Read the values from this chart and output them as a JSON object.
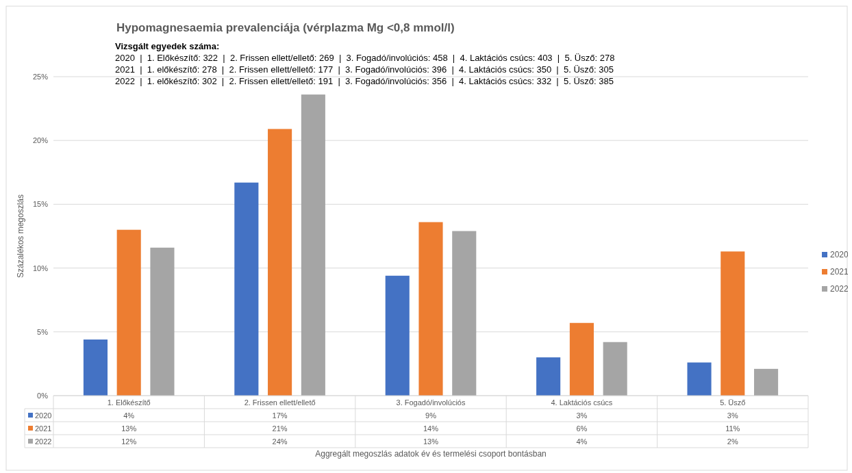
{
  "chart_data": {
    "type": "bar",
    "title": "Hypomagnesaemia prevalenciája (vérplazma Mg <0,8 mmol/l)",
    "annotations": [
      "Vizsgált egyedek száma:",
      "2020  |  1. Előkészítő: 322  |  2. Frissen ellett/ellető: 269  |  3. Fogadó/involúciós: 458  |  4. Laktációs csúcs: 403  |  5. Üsző: 278",
      "2021  |  1. előkészítő: 278  |  2. Frissen ellett/ellető: 177  |  3. Fogadó/involúciós: 396  |  4. Laktációs csúcs: 350  |  5. Üsző: 305",
      "2022  |  1. előkészítő: 302  |  2. Frissen ellett/ellető: 191  |  3. Fogadó/involúciós: 356  |  4. Laktációs csúcs: 332  |  5. Üsző: 385",
      "Aggregált megoszlás adatok év és termelési csoport bontásban"
    ],
    "ylabel": "Százalékos megoszlás",
    "categories": [
      "1. Előkészítő",
      "2. Frissen ellett/ellető",
      "3. Fogadó/involúciós",
      "4. Laktációs csúcs",
      "5. Üsző"
    ],
    "series": [
      {
        "name": "2020",
        "color": "#4472c4",
        "values": [
          4.4,
          16.7,
          9.4,
          3.0,
          2.6
        ],
        "value_labels": [
          "4%",
          "17%",
          "9%",
          "3%",
          "3%"
        ]
      },
      {
        "name": "2021",
        "color": "#ed7d31",
        "values": [
          13.0,
          20.9,
          13.6,
          5.7,
          11.3
        ],
        "value_labels": [
          "13%",
          "21%",
          "14%",
          "6%",
          "11%"
        ]
      },
      {
        "name": "2022",
        "color": "#a5a5a5",
        "values": [
          11.6,
          23.6,
          12.9,
          4.2,
          2.1
        ],
        "value_labels": [
          "12%",
          "24%",
          "13%",
          "4%",
          "2%"
        ]
      }
    ],
    "ylim": [
      0,
      25
    ],
    "yticks": [
      {
        "value": 0,
        "label": "0%"
      },
      {
        "value": 5,
        "label": "5%"
      },
      {
        "value": 10,
        "label": "10%"
      },
      {
        "value": 15,
        "label": "15%"
      },
      {
        "value": 20,
        "label": "20%"
      },
      {
        "value": 25,
        "label": "25%"
      }
    ],
    "grid": "y",
    "legend": "right"
  }
}
